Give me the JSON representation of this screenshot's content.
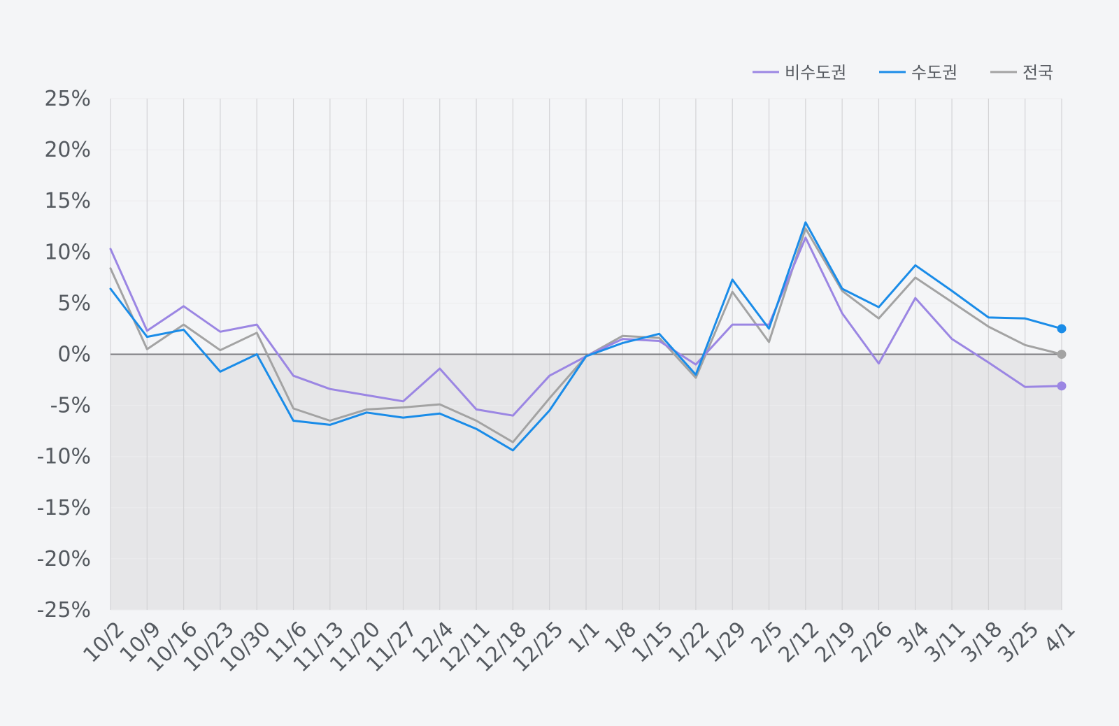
{
  "chart_data": {
    "type": "line",
    "categories": [
      "10/2",
      "10/9",
      "10/16",
      "10/23",
      "10/30",
      "11/6",
      "11/13",
      "11/20",
      "11/27",
      "12/4",
      "12/11",
      "12/18",
      "12/25",
      "1/1",
      "1/8",
      "1/15",
      "1/22",
      "1/29",
      "2/5",
      "2/12",
      "2/19",
      "2/26",
      "3/4",
      "3/11",
      "3/18",
      "3/25",
      "4/1"
    ],
    "series": [
      {
        "name": "비수도권",
        "color": "#9b86e3",
        "values": [
          10.3,
          2.3,
          4.7,
          2.2,
          2.9,
          -2.1,
          -3.4,
          -4.0,
          -4.6,
          -1.4,
          -5.4,
          -6.0,
          -2.1,
          -0.2,
          1.5,
          1.3,
          -1.0,
          2.9,
          2.9,
          11.4,
          4.0,
          -0.9,
          5.5,
          1.5,
          -0.8,
          -3.2,
          -3.1
        ]
      },
      {
        "name": "수도권",
        "color": "#1a8ce8",
        "values": [
          6.4,
          1.7,
          2.4,
          -1.7,
          0.0,
          -6.5,
          -6.9,
          -5.7,
          -6.2,
          -5.8,
          -7.3,
          -9.4,
          -5.5,
          -0.2,
          1.1,
          2.0,
          -2.0,
          7.3,
          2.5,
          12.9,
          6.4,
          4.6,
          8.7,
          6.2,
          3.6,
          3.5,
          2.5
        ]
      },
      {
        "name": "전국",
        "color": "#a3a3a3",
        "values": [
          8.4,
          0.5,
          2.9,
          0.4,
          2.1,
          -5.3,
          -6.5,
          -5.4,
          -5.2,
          -4.9,
          -6.5,
          -8.6,
          -4.3,
          -0.2,
          1.8,
          1.6,
          -2.3,
          6.1,
          1.2,
          12.3,
          6.2,
          3.5,
          7.5,
          5.1,
          2.7,
          0.9,
          0.0
        ]
      }
    ],
    "y_ticks": [
      "25%",
      "20%",
      "15%",
      "10%",
      "5%",
      "0%",
      "-5%",
      "-10%",
      "-15%",
      "-20%",
      "-25%"
    ],
    "ylim": [
      -25,
      25
    ],
    "y_unit": "%",
    "grid": "vertical",
    "negative_region_shaded": true,
    "legend_position": "top-right",
    "end_point_markers": true
  }
}
